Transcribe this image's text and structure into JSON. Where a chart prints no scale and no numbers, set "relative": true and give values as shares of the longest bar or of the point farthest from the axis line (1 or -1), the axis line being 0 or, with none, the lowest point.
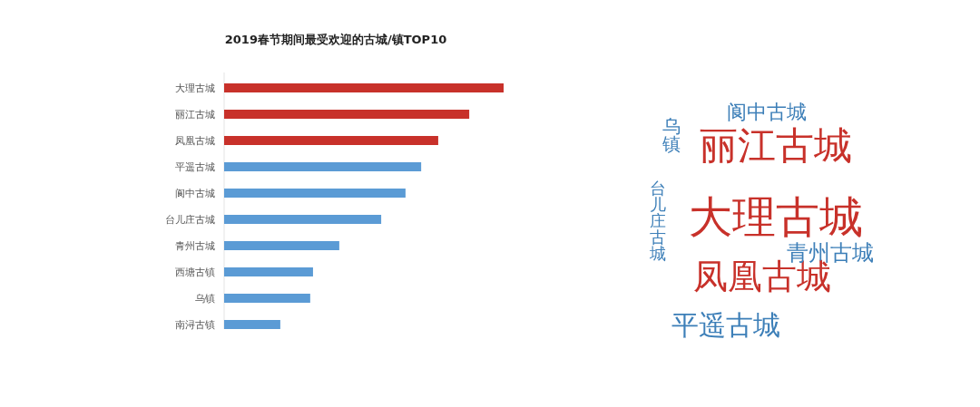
{
  "chart_data": [
    {
      "type": "bar",
      "orientation": "horizontal",
      "relative": true,
      "title": "2019春节期间最受欢迎的古城/镇TOP10",
      "categories": [
        "大理古城",
        "丽江古城",
        "凤凰古城",
        "平遥古城",
        "阆中古城",
        "台儿庄古城",
        "青州古城",
        "西塘古镇",
        "乌镇",
        "南浔古镇"
      ],
      "values": [
        1,
        0.877,
        0.766,
        0.705,
        0.649,
        0.562,
        0.412,
        0.318,
        0.308,
        0.201
      ],
      "colors": [
        "#c8312a",
        "#c8312a",
        "#c8312a",
        "#5b9bd5",
        "#5b9bd5",
        "#5b9bd5",
        "#5b9bd5",
        "#5b9bd5",
        "#5b9bd5",
        "#5b9bd5"
      ]
    },
    {
      "type": "other",
      "annotations": [
        "大理古城",
        "丽江古城",
        "凤凰古城",
        "平遥古城",
        "青州古城",
        "阆中古城",
        "乌镇",
        "台儿庄古城"
      ],
      "colors": [
        "#c8312a",
        "#c8312a",
        "#c8312a",
        "#3d7fb8",
        "#3d7fb8",
        "#3d7fb8",
        "#3d7fb8",
        "#3d7fb8"
      ]
    }
  ]
}
